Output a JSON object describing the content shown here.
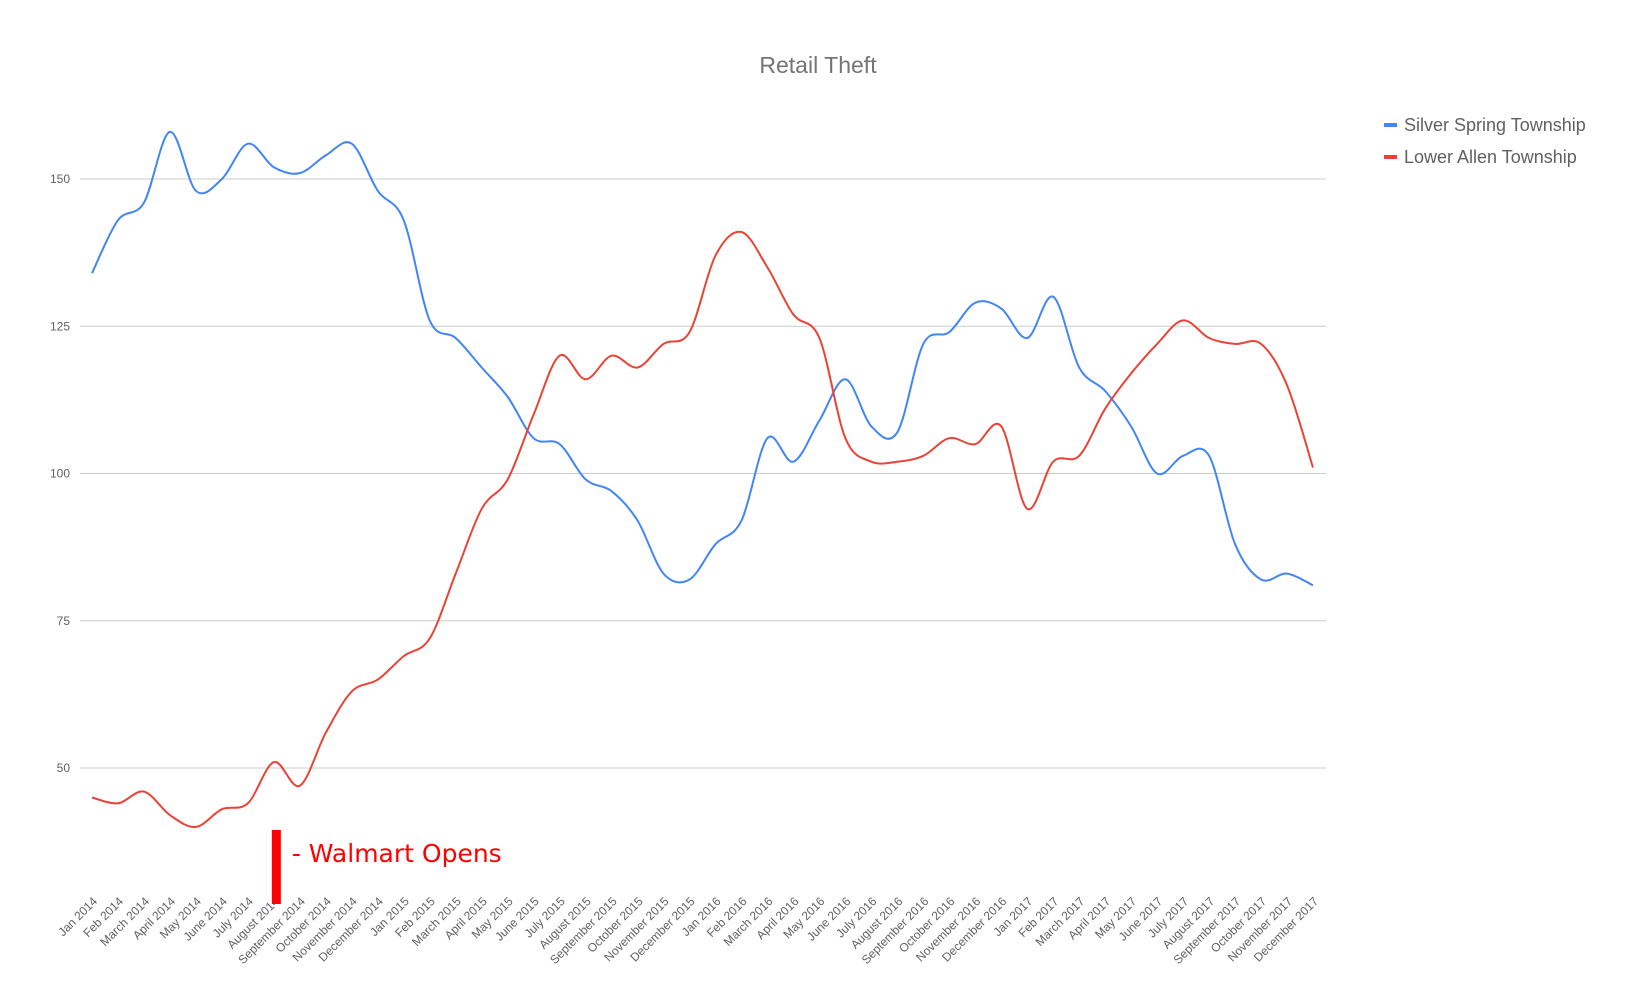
{
  "chart_data": {
    "type": "line",
    "title": "Retail Theft",
    "xlabel": "",
    "ylabel": "",
    "ylim": [
      25,
      165
    ],
    "yticks": [
      50,
      75,
      100,
      125,
      150
    ],
    "grid": true,
    "legend_position": "top-right",
    "categories": [
      "Jan 2014",
      "Feb 2014",
      "March 2014",
      "April 2014",
      "May 2014",
      "June 2014",
      "July 2014",
      "August 2014",
      "September 2014",
      "October 2014",
      "November 2014",
      "December 2014",
      "Jan 2015",
      "Feb 2015",
      "March 2015",
      "April 2015",
      "May 2015",
      "June 2015",
      "July 2015",
      "August 2015",
      "September 2015",
      "October 2015",
      "November 2015",
      "December 2015",
      "Jan 2016",
      "Feb 2016",
      "March 2016",
      "April 2016",
      "May 2016",
      "June 2016",
      "July 2016",
      "August 2016",
      "September 2016",
      "October 2016",
      "November 2016",
      "December 2016",
      "Jan 2017",
      "Feb 2017",
      "March 2017",
      "April 2017",
      "May 2017",
      "June 2017",
      "July 2017",
      "August 2017",
      "September 2017",
      "October 2017",
      "November 2017",
      "December 2017"
    ],
    "series": [
      {
        "name": "Silver Spring Township",
        "color": "#4285f4",
        "values": [
          134,
          143,
          146,
          158,
          148,
          150,
          156,
          152,
          151,
          154,
          156,
          148,
          143,
          126,
          123,
          118,
          113,
          106,
          105,
          99,
          97,
          92,
          83,
          82,
          88,
          92,
          106,
          102,
          109,
          116,
          108,
          107,
          122,
          124,
          129,
          128,
          123,
          130,
          118,
          114,
          108,
          100,
          103,
          103,
          88,
          82,
          83,
          81
        ]
      },
      {
        "name": "Lower Allen Township",
        "color": "#ea4335",
        "values": [
          45,
          44,
          46,
          42,
          40,
          43,
          44,
          51,
          47,
          56,
          63,
          65,
          69,
          72,
          83,
          94,
          99,
          110,
          120,
          116,
          120,
          118,
          122,
          124,
          137,
          141,
          135,
          127,
          123,
          106,
          102,
          102,
          103,
          106,
          105,
          108,
          94,
          102,
          103,
          111,
          117,
          122,
          126,
          123,
          122,
          122,
          115,
          101
        ]
      }
    ],
    "annotation": {
      "text": "- Walmart Opens",
      "category": "August 2014",
      "color": "#ff0000"
    }
  }
}
